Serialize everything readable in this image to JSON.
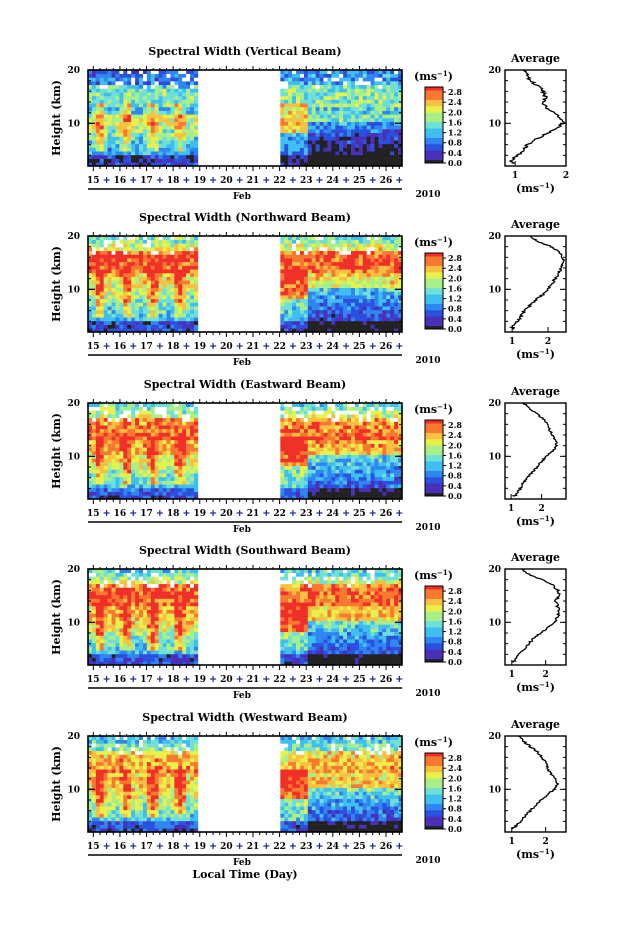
{
  "figure": {
    "xlabel": "Local Time (Day)",
    "month": "Feb",
    "year": "2010",
    "average_title": "Average",
    "unit_label": "(ms",
    "unit_exp": "−1"
  },
  "colors": {
    "scale": [
      "#222222",
      "#4a2fb8",
      "#2a50e0",
      "#2f86f0",
      "#3fbff0",
      "#6fe0d8",
      "#a8ef8a",
      "#e8f04a",
      "#f8c040",
      "#f87830",
      "#f03028"
    ],
    "gap": "#ffffff"
  },
  "chart_data": [
    {
      "type": "heatmap",
      "title": "Spectral Width (Vertical Beam)",
      "ylabel": "Height (km)",
      "ylim": [
        2,
        20
      ],
      "yticks": [
        "20",
        "10"
      ],
      "days": [
        "15",
        "16",
        "17",
        "18",
        "19",
        "20",
        "21",
        "22",
        "23",
        "24",
        "25",
        "26"
      ],
      "data_gap_days": [
        19.0,
        22.0
      ],
      "colorbar": {
        "labels": [
          "2.8",
          "2.4",
          "2.0",
          "1.6",
          "1.2",
          "0.8",
          "0.4",
          "0.0"
        ],
        "range": [
          0.0,
          3.0
        ]
      },
      "average_profile": {
        "xlim": [
          0.8,
          2.0
        ],
        "xticks": [
          "1",
          "2"
        ],
        "ylim": [
          2,
          20
        ],
        "yticks": [
          "20",
          "10"
        ],
        "height_km": [
          2.5,
          3,
          4,
          5,
          6,
          7,
          8,
          9,
          10,
          11,
          12,
          13,
          14,
          15,
          16,
          17,
          18,
          19,
          20
        ],
        "width_ms": [
          1.0,
          0.9,
          1.05,
          1.15,
          1.25,
          1.4,
          1.6,
          1.8,
          1.95,
          1.9,
          1.75,
          1.6,
          1.55,
          1.6,
          1.55,
          1.45,
          1.3,
          1.25,
          1.2
        ]
      }
    },
    {
      "type": "heatmap",
      "title": "Spectral Width (Northward Beam)",
      "ylabel": "Height (km)",
      "ylim": [
        2,
        20
      ],
      "yticks": [
        "20",
        "10"
      ],
      "days": [
        "15",
        "16",
        "17",
        "18",
        "19",
        "20",
        "21",
        "22",
        "23",
        "24",
        "25",
        "26"
      ],
      "data_gap_days": [
        19.0,
        22.0
      ],
      "colorbar": {
        "labels": [
          "2.8",
          "2.4",
          "2.0",
          "1.6",
          "1.2",
          "0.8",
          "0.4",
          "0.0"
        ],
        "range": [
          0.0,
          3.0
        ]
      },
      "average_profile": {
        "xlim": [
          0.8,
          2.5
        ],
        "xticks": [
          "1",
          "2"
        ],
        "ylim": [
          2,
          20
        ],
        "yticks": [
          "20",
          "10"
        ],
        "height_km": [
          2.5,
          3,
          4,
          5,
          6,
          7,
          8,
          9,
          10,
          11,
          12,
          13,
          14,
          15,
          16,
          17,
          18,
          19,
          20
        ],
        "width_ms": [
          1.05,
          1.0,
          1.15,
          1.25,
          1.35,
          1.5,
          1.65,
          1.85,
          2.0,
          2.1,
          2.2,
          2.3,
          2.35,
          2.45,
          2.4,
          2.3,
          2.1,
          1.7,
          1.5
        ]
      }
    },
    {
      "type": "heatmap",
      "title": "Spectral Width (Eastward Beam)",
      "ylabel": "Height (km)",
      "ylim": [
        2,
        20
      ],
      "yticks": [
        "20",
        "10"
      ],
      "days": [
        "15",
        "16",
        "17",
        "18",
        "19",
        "20",
        "21",
        "22",
        "23",
        "24",
        "25",
        "26"
      ],
      "data_gap_days": [
        19.0,
        22.0
      ],
      "colorbar": {
        "labels": [
          "2.8",
          "2.4",
          "2.0",
          "1.6",
          "1.2",
          "0.8",
          "0.4",
          "0.0"
        ],
        "range": [
          0.0,
          3.0
        ]
      },
      "average_profile": {
        "xlim": [
          0.8,
          2.8
        ],
        "xticks": [
          "1",
          "2"
        ],
        "ylim": [
          2,
          20
        ],
        "yticks": [
          "20",
          "10"
        ],
        "height_km": [
          2.5,
          3,
          4,
          5,
          6,
          7,
          8,
          9,
          10,
          11,
          12,
          13,
          14,
          15,
          16,
          17,
          18,
          19,
          20
        ],
        "width_ms": [
          1.1,
          1.2,
          1.3,
          1.4,
          1.55,
          1.7,
          1.85,
          2.0,
          2.15,
          2.35,
          2.5,
          2.45,
          2.35,
          2.25,
          2.2,
          2.05,
          1.85,
          1.6,
          1.4
        ]
      }
    },
    {
      "type": "heatmap",
      "title": "Spectral Width (Southward Beam)",
      "ylabel": "Height (km)",
      "ylim": [
        2,
        20
      ],
      "yticks": [
        "20",
        "10"
      ],
      "days": [
        "15",
        "16",
        "17",
        "18",
        "19",
        "20",
        "21",
        "22",
        "23",
        "24",
        "25",
        "26"
      ],
      "data_gap_days": [
        19.0,
        22.0
      ],
      "colorbar": {
        "labels": [
          "2.8",
          "2.4",
          "2.0",
          "1.6",
          "1.2",
          "0.8",
          "0.4",
          "0.0"
        ],
        "range": [
          0.0,
          3.0
        ]
      },
      "average_profile": {
        "xlim": [
          0.8,
          2.6
        ],
        "xticks": [
          "1",
          "2"
        ],
        "ylim": [
          2,
          20
        ],
        "yticks": [
          "20",
          "10"
        ],
        "height_km": [
          2.5,
          3,
          4,
          5,
          6,
          7,
          8,
          9,
          10,
          11,
          12,
          13,
          14,
          15,
          16,
          17,
          18,
          19,
          20
        ],
        "width_ms": [
          1.05,
          1.1,
          1.2,
          1.35,
          1.5,
          1.65,
          1.85,
          2.05,
          2.25,
          2.35,
          2.4,
          2.35,
          2.3,
          2.4,
          2.35,
          2.2,
          1.9,
          1.5,
          1.3
        ]
      }
    },
    {
      "type": "heatmap",
      "title": "Spectral Width (Westward Beam)",
      "ylabel": "Height (km)",
      "ylim": [
        2,
        20
      ],
      "yticks": [
        "20",
        "10"
      ],
      "days": [
        "15",
        "16",
        "17",
        "18",
        "19",
        "20",
        "21",
        "22",
        "23",
        "24",
        "25",
        "26"
      ],
      "data_gap_days": [
        19.0,
        22.0
      ],
      "colorbar": {
        "labels": [
          "2.8",
          "2.4",
          "2.0",
          "1.6",
          "1.2",
          "0.8",
          "0.4",
          "0.0"
        ],
        "range": [
          0.0,
          3.0
        ]
      },
      "average_profile": {
        "xlim": [
          0.8,
          2.6
        ],
        "xticks": [
          "1",
          "2"
        ],
        "ylim": [
          2,
          20
        ],
        "yticks": [
          "20",
          "10"
        ],
        "height_km": [
          2.5,
          3,
          4,
          5,
          6,
          7,
          8,
          9,
          10,
          11,
          12,
          13,
          14,
          15,
          16,
          17,
          18,
          19,
          20
        ],
        "width_ms": [
          1.0,
          1.1,
          1.25,
          1.4,
          1.55,
          1.7,
          1.85,
          2.05,
          2.25,
          2.35,
          2.3,
          2.15,
          2.05,
          2.0,
          1.9,
          1.75,
          1.55,
          1.35,
          1.2
        ]
      }
    }
  ]
}
